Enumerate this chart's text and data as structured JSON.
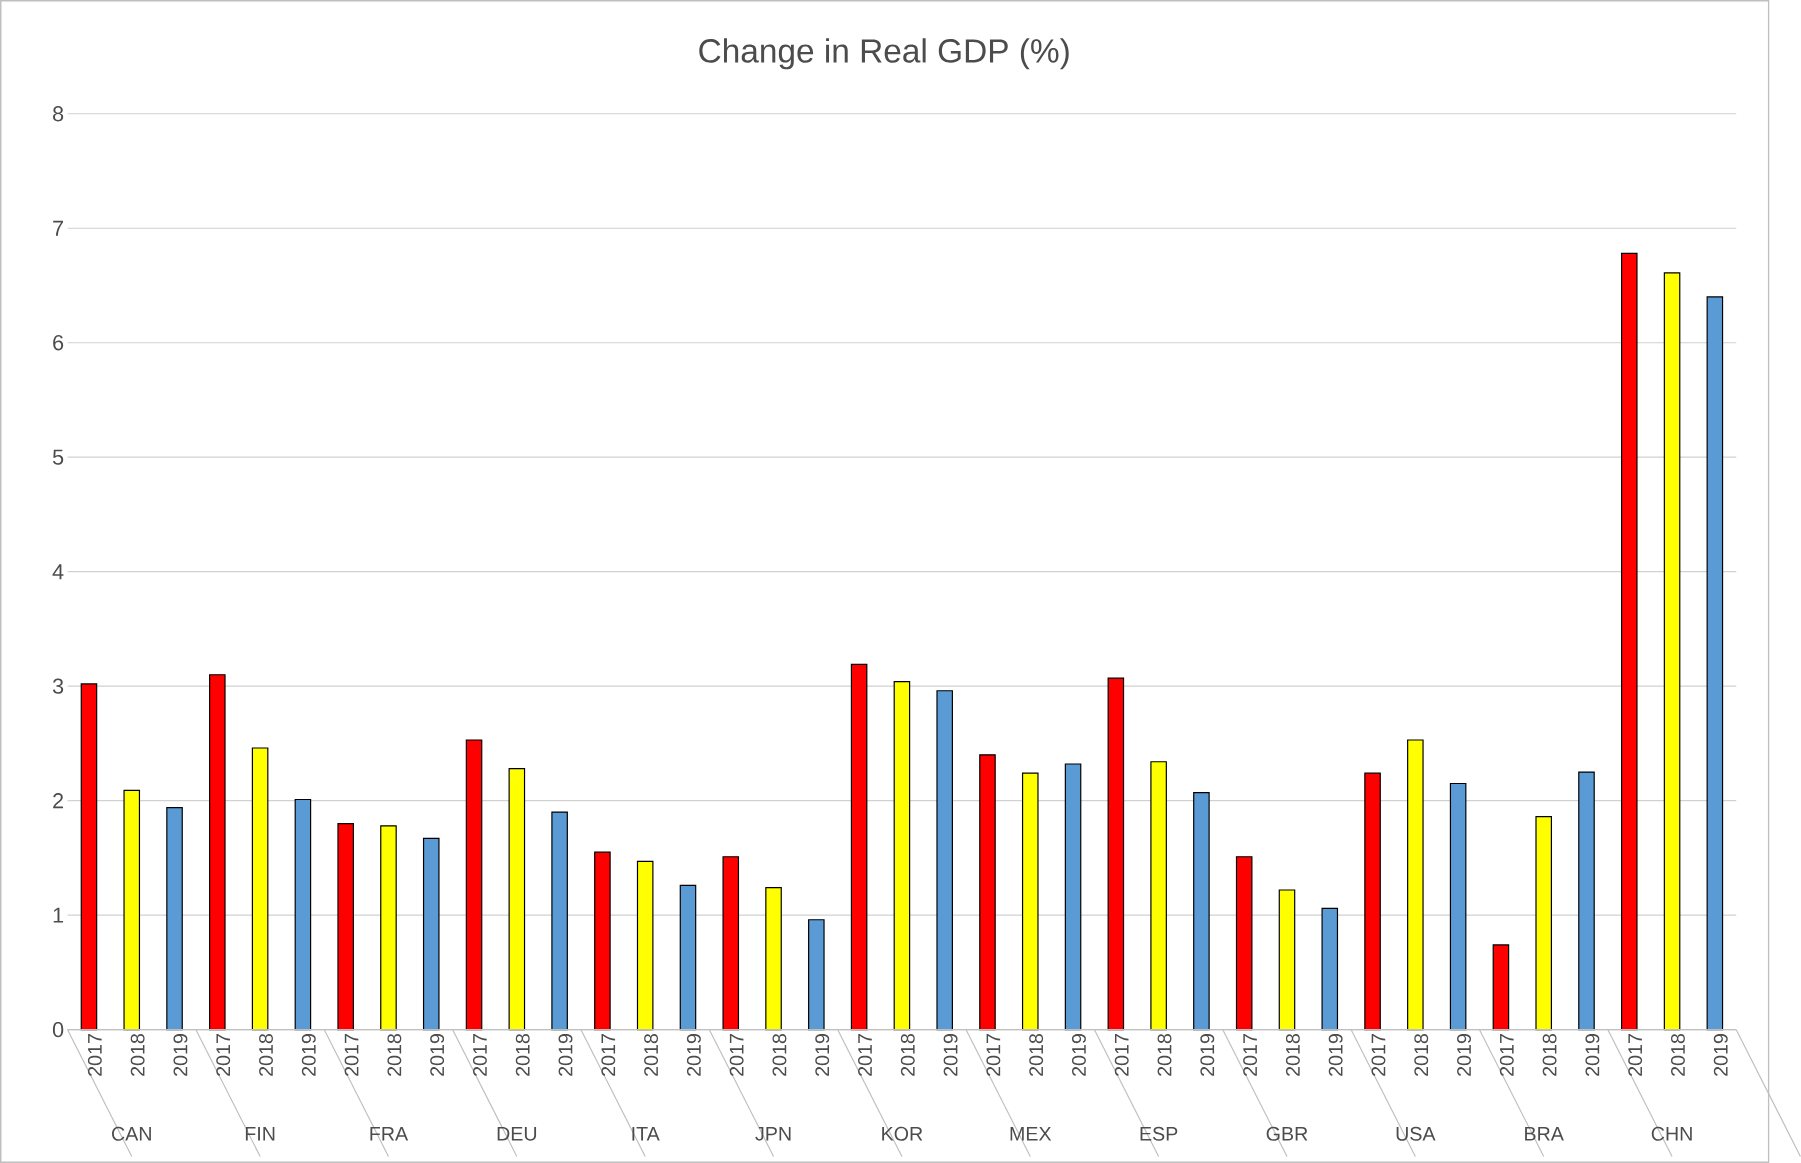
{
  "chart_data": {
    "type": "bar",
    "title": "Change in Real GDP (%)",
    "categories": [
      "CAN",
      "FIN",
      "FRA",
      "DEU",
      "ITA",
      "JPN",
      "KOR",
      "MEX",
      "ESP",
      "GBR",
      "USA",
      "BRA",
      "CHN"
    ],
    "series": [
      {
        "name": "2017",
        "color": "#ff0000",
        "values": [
          3.02,
          3.1,
          1.8,
          2.53,
          1.55,
          1.51,
          3.19,
          2.4,
          3.07,
          1.51,
          2.24,
          0.74,
          6.78
        ]
      },
      {
        "name": "2018",
        "color": "#ffff00",
        "values": [
          2.09,
          2.46,
          1.78,
          2.28,
          1.47,
          1.24,
          3.04,
          2.24,
          2.34,
          1.22,
          2.53,
          1.86,
          6.61
        ]
      },
      {
        "name": "2019",
        "color": "#5b9bd5",
        "values": [
          1.94,
          2.01,
          1.67,
          1.9,
          1.26,
          0.96,
          2.96,
          2.32,
          2.07,
          1.06,
          2.15,
          2.25,
          6.4
        ]
      }
    ],
    "ylim": [
      0,
      8
    ],
    "yticks": [
      0,
      1,
      2,
      3,
      4,
      5,
      6,
      7,
      8
    ],
    "grid": "y"
  }
}
